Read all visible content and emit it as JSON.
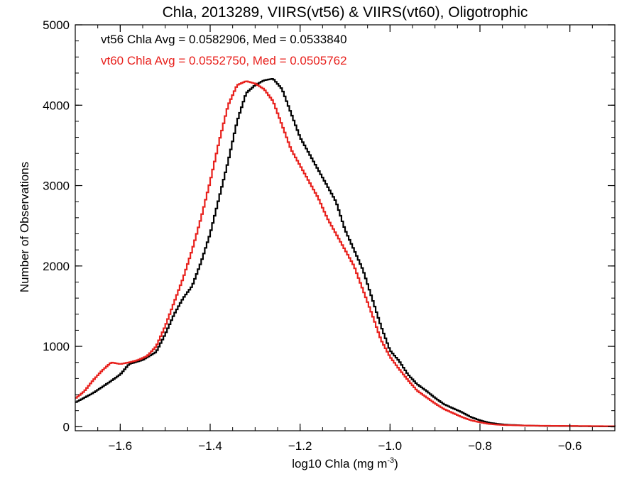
{
  "chart_data": {
    "type": "line",
    "style": "step-histogram",
    "title": "Chla, 2013289, VIIRS(vt56) & VIIRS(vt60), Oligotrophic",
    "xlabel": "log10 Chla (mg m",
    "xlabel_sup": "-3",
    "xlabel_suffix": ")",
    "ylabel": "Number of Observations",
    "xlim": [
      -1.7,
      -0.5
    ],
    "ylim": [
      -50,
      5000
    ],
    "x_ticks": [
      -1.6,
      -1.4,
      -1.2,
      -1.0,
      -0.8,
      -0.6
    ],
    "x_tick_labels": [
      "−1.6",
      "−1.4",
      "−1.2",
      "−1.0",
      "−0.8",
      "−0.6"
    ],
    "y_ticks": [
      0,
      1000,
      2000,
      3000,
      4000,
      5000
    ],
    "y_tick_labels": [
      "0",
      "1000",
      "2000",
      "3000",
      "4000",
      "5000"
    ],
    "grid": false,
    "annotations": [
      {
        "text": "vt56 Chla Avg = 0.0582906, Med = 0.0533840",
        "color": "#000000"
      },
      {
        "text": "vt60 Chla Avg = 0.0552750, Med = 0.0505762",
        "color": "#e8201c"
      }
    ],
    "series": [
      {
        "color": "#000000",
        "points": [
          [
            -1.7,
            300
          ],
          [
            -1.66,
            420
          ],
          [
            -1.62,
            570
          ],
          [
            -1.6,
            650
          ],
          [
            -1.58,
            780
          ],
          [
            -1.55,
            830
          ],
          [
            -1.52,
            930
          ],
          [
            -1.5,
            1150
          ],
          [
            -1.48,
            1400
          ],
          [
            -1.46,
            1600
          ],
          [
            -1.44,
            1750
          ],
          [
            -1.42,
            2050
          ],
          [
            -1.4,
            2400
          ],
          [
            -1.38,
            2850
          ],
          [
            -1.36,
            3300
          ],
          [
            -1.34,
            3800
          ],
          [
            -1.32,
            4150
          ],
          [
            -1.3,
            4250
          ],
          [
            -1.28,
            4310
          ],
          [
            -1.26,
            4330
          ],
          [
            -1.24,
            4200
          ],
          [
            -1.22,
            3900
          ],
          [
            -1.2,
            3600
          ],
          [
            -1.18,
            3400
          ],
          [
            -1.16,
            3200
          ],
          [
            -1.14,
            3000
          ],
          [
            -1.12,
            2800
          ],
          [
            -1.1,
            2450
          ],
          [
            -1.08,
            2200
          ],
          [
            -1.06,
            1950
          ],
          [
            -1.04,
            1600
          ],
          [
            -1.02,
            1250
          ],
          [
            -1.0,
            950
          ],
          [
            -0.98,
            820
          ],
          [
            -0.96,
            650
          ],
          [
            -0.94,
            530
          ],
          [
            -0.92,
            450
          ],
          [
            -0.9,
            360
          ],
          [
            -0.88,
            280
          ],
          [
            -0.86,
            230
          ],
          [
            -0.84,
            180
          ],
          [
            -0.82,
            120
          ],
          [
            -0.8,
            80
          ],
          [
            -0.78,
            50
          ],
          [
            -0.76,
            35
          ],
          [
            -0.74,
            25
          ],
          [
            -0.72,
            20
          ],
          [
            -0.7,
            15
          ],
          [
            -0.66,
            10
          ],
          [
            -0.6,
            8
          ],
          [
            -0.55,
            5
          ],
          [
            -0.5,
            3
          ]
        ]
      },
      {
        "color": "#e8201c",
        "points": [
          [
            -1.7,
            350
          ],
          [
            -1.68,
            440
          ],
          [
            -1.66,
            580
          ],
          [
            -1.64,
            700
          ],
          [
            -1.62,
            800
          ],
          [
            -1.6,
            780
          ],
          [
            -1.58,
            800
          ],
          [
            -1.56,
            830
          ],
          [
            -1.54,
            880
          ],
          [
            -1.52,
            1000
          ],
          [
            -1.5,
            1250
          ],
          [
            -1.48,
            1550
          ],
          [
            -1.46,
            1850
          ],
          [
            -1.44,
            2200
          ],
          [
            -1.42,
            2600
          ],
          [
            -1.4,
            3050
          ],
          [
            -1.38,
            3550
          ],
          [
            -1.36,
            4000
          ],
          [
            -1.34,
            4250
          ],
          [
            -1.32,
            4300
          ],
          [
            -1.3,
            4270
          ],
          [
            -1.28,
            4200
          ],
          [
            -1.26,
            4050
          ],
          [
            -1.24,
            3750
          ],
          [
            -1.22,
            3450
          ],
          [
            -1.2,
            3250
          ],
          [
            -1.18,
            3050
          ],
          [
            -1.16,
            2850
          ],
          [
            -1.14,
            2600
          ],
          [
            -1.12,
            2400
          ],
          [
            -1.1,
            2200
          ],
          [
            -1.08,
            2000
          ],
          [
            -1.06,
            1700
          ],
          [
            -1.04,
            1400
          ],
          [
            -1.02,
            1080
          ],
          [
            -1.0,
            870
          ],
          [
            -0.98,
            720
          ],
          [
            -0.96,
            580
          ],
          [
            -0.94,
            450
          ],
          [
            -0.92,
            370
          ],
          [
            -0.9,
            290
          ],
          [
            -0.88,
            220
          ],
          [
            -0.86,
            170
          ],
          [
            -0.84,
            120
          ],
          [
            -0.82,
            80
          ],
          [
            -0.8,
            55
          ],
          [
            -0.78,
            35
          ],
          [
            -0.76,
            25
          ],
          [
            -0.74,
            20
          ],
          [
            -0.7,
            15
          ],
          [
            -0.66,
            12
          ],
          [
            -0.6,
            10
          ],
          [
            -0.55,
            8
          ],
          [
            -0.5,
            6
          ]
        ]
      }
    ]
  }
}
